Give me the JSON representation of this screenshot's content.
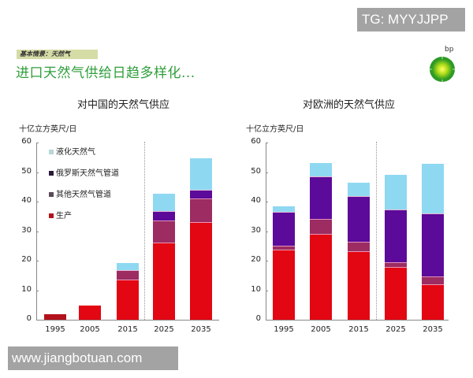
{
  "watermarks": {
    "top": "TG: MYYJJPP",
    "bottom": "www.jiangbotuan.com"
  },
  "header": {
    "tag": "基本情景：天然气",
    "headline": "进口天然气供给日趋多样化...",
    "logo_text": "bp"
  },
  "colors": {
    "lng": "#8fd8f2",
    "russia": "#5b0a9a",
    "other": "#9c2c62",
    "production": "#e30613",
    "production_1995": "#b3121c",
    "headline": "#2f9e3a",
    "tag_bg": "#d6dca6"
  },
  "legend": {
    "lng": "液化天然气",
    "russia": "俄罗斯天然气管道",
    "other": "其他天然气管道",
    "production": "生产"
  },
  "chart_data": [
    {
      "type": "bar",
      "stacked": true,
      "title": "对中国的天然气供应",
      "ylabel": "十亿立方英尺/日",
      "xlabel": "",
      "ylim": [
        0,
        60
      ],
      "yticks": [
        0,
        10,
        20,
        30,
        40,
        50,
        60
      ],
      "categories": [
        "1995",
        "2005",
        "2015",
        "2025",
        "2035"
      ],
      "projection_divider_after": "2015",
      "legend_position": "upper-left-inside",
      "series": [
        {
          "name": "生产",
          "values": [
            1.8,
            4.9,
            13.4,
            25.9,
            32.8
          ]
        },
        {
          "name": "其他天然气管道",
          "values": [
            0,
            0,
            3.2,
            7.4,
            8.0
          ]
        },
        {
          "name": "俄罗斯天然气管道",
          "values": [
            0,
            0,
            0,
            3.2,
            2.9
          ]
        },
        {
          "name": "液化天然气",
          "values": [
            0,
            0,
            2.6,
            6.2,
            11.0
          ]
        }
      ]
    },
    {
      "type": "bar",
      "stacked": true,
      "title": "对欧洲的天然气供应",
      "ylabel": "十亿立方英尺/日",
      "xlabel": "",
      "ylim": [
        0,
        60
      ],
      "yticks": [
        0,
        10,
        20,
        30,
        40,
        50,
        60
      ],
      "categories": [
        "1995",
        "2005",
        "2015",
        "2025",
        "2035"
      ],
      "projection_divider_after": "2015",
      "series": [
        {
          "name": "生产",
          "values": [
            23.5,
            28.8,
            22.9,
            17.6,
            11.7
          ]
        },
        {
          "name": "其他天然气管道",
          "values": [
            1.3,
            5.1,
            3.2,
            1.6,
            2.7
          ]
        },
        {
          "name": "俄罗斯天然气管道",
          "values": [
            11.5,
            14.4,
            15.5,
            17.8,
            21.3
          ]
        },
        {
          "name": "液化天然气",
          "values": [
            2.2,
            4.8,
            4.8,
            12.0,
            17.1
          ]
        }
      ]
    }
  ]
}
